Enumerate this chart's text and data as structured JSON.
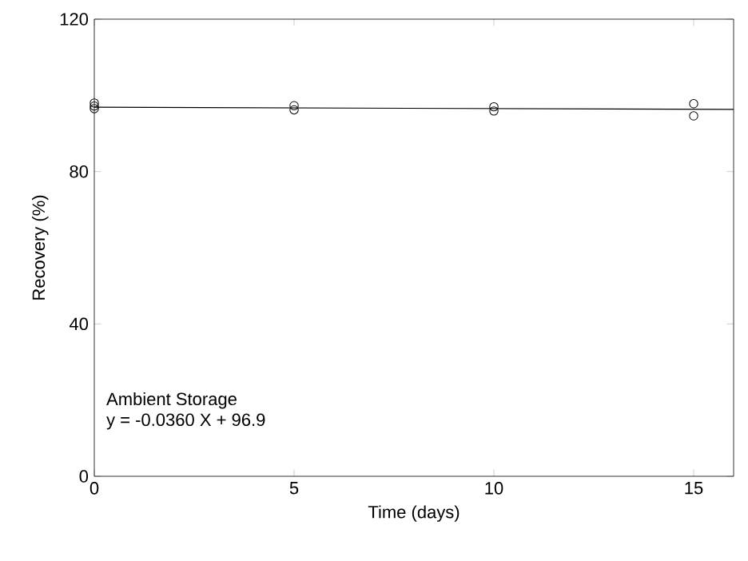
{
  "chart_data": {
    "type": "scatter",
    "xlabel": "Time (days)",
    "ylabel": "Recovery (%)",
    "xlim": [
      0,
      16
    ],
    "xticks": [
      0,
      5,
      10,
      15
    ],
    "ylim": [
      0,
      120
    ],
    "yticks": [
      0,
      40,
      80,
      120
    ],
    "grid": false,
    "series": [
      {
        "marker": "circle",
        "color": "#000000",
        "x": [
          0,
          0,
          0,
          5,
          5,
          10,
          10,
          15,
          15
        ],
        "values": [
          98.0,
          97.2,
          96.5,
          97.3,
          96.2,
          97.0,
          95.9,
          97.8,
          94.6
        ]
      },
      {
        "type": "line",
        "color": "#000000",
        "x": [
          0,
          16
        ],
        "values": [
          96.9,
          96.3
        ]
      }
    ],
    "annotations": [
      "Ambient Storage",
      "y = -0.0360 X + 96.9"
    ]
  }
}
